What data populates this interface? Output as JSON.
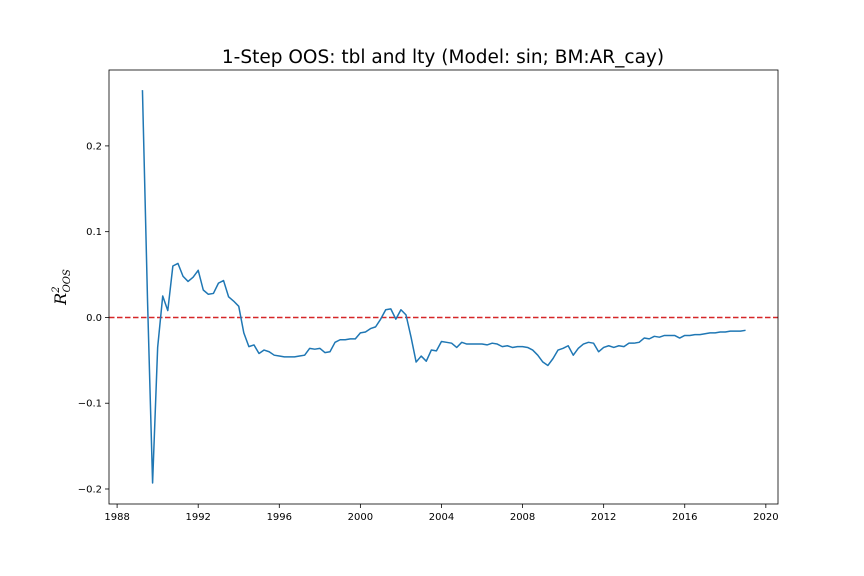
{
  "chart_data": {
    "type": "line",
    "title": "1-Step OOS: tbl and lty (Model: sin; BM:AR_cay)",
    "ylabel_main": "R",
    "ylabel_sup": "2",
    "ylabel_sub": "OOS",
    "xlabel": "",
    "xlim": [
      1987.6,
      2020.6
    ],
    "ylim": [
      -0.2175,
      0.2885
    ],
    "x_ticks": [
      1988,
      1992,
      1996,
      2000,
      2004,
      2008,
      2012,
      2016,
      2020
    ],
    "x_tick_labels": [
      "1988",
      "1992",
      "1996",
      "2000",
      "2004",
      "2008",
      "2012",
      "2016",
      "2020"
    ],
    "y_ticks": [
      -0.2,
      -0.1,
      0.0,
      0.1,
      0.2
    ],
    "y_tick_labels": [
      "−0.2",
      "−0.1",
      "0.0",
      "0.1",
      "0.2"
    ],
    "grid": false,
    "reference_line": {
      "y": 0.0,
      "style": "dashed",
      "color": "#d62728"
    },
    "series": [
      {
        "color": "#1f77b4",
        "x": [
          1989.25,
          1989.5,
          1989.75,
          1990.0,
          1990.25,
          1990.5,
          1990.75,
          1991.0,
          1991.25,
          1991.5,
          1991.75,
          1992.0,
          1992.25,
          1992.5,
          1992.75,
          1993.0,
          1993.25,
          1993.5,
          1993.75,
          1994.0,
          1994.25,
          1994.5,
          1994.75,
          1995.0,
          1995.25,
          1995.5,
          1995.75,
          1996.0,
          1996.25,
          1996.5,
          1996.75,
          1997.0,
          1997.25,
          1997.5,
          1997.75,
          1998.0,
          1998.25,
          1998.5,
          1998.75,
          1999.0,
          1999.25,
          1999.5,
          1999.75,
          2000.0,
          2000.25,
          2000.5,
          2000.75,
          2001.0,
          2001.25,
          2001.5,
          2001.75,
          2002.0,
          2002.25,
          2002.5,
          2002.75,
          2003.0,
          2003.25,
          2003.5,
          2003.75,
          2004.0,
          2004.25,
          2004.5,
          2004.75,
          2005.0,
          2005.25,
          2005.5,
          2005.75,
          2006.0,
          2006.25,
          2006.5,
          2006.75,
          2007.0,
          2007.25,
          2007.5,
          2007.75,
          2008.0,
          2008.25,
          2008.5,
          2008.75,
          2009.0,
          2009.25,
          2009.5,
          2009.75,
          2010.0,
          2010.25,
          2010.5,
          2010.75,
          2011.0,
          2011.25,
          2011.5,
          2011.75,
          2012.0,
          2012.25,
          2012.5,
          2012.75,
          2013.0,
          2013.25,
          2013.5,
          2013.75,
          2014.0,
          2014.25,
          2014.5,
          2014.75,
          2015.0,
          2015.25,
          2015.5,
          2015.75,
          2016.0,
          2016.25,
          2016.5,
          2016.75,
          2017.0,
          2017.25,
          2017.5,
          2017.75,
          2018.0,
          2018.25,
          2018.5,
          2018.75,
          2019.0
        ],
        "y": [
          0.265,
          0.02,
          -0.193,
          -0.035,
          0.025,
          0.008,
          0.06,
          0.063,
          0.048,
          0.042,
          0.047,
          0.055,
          0.032,
          0.027,
          0.028,
          0.04,
          0.043,
          0.024,
          0.019,
          0.013,
          -0.018,
          -0.034,
          -0.032,
          -0.042,
          -0.038,
          -0.04,
          -0.044,
          -0.045,
          -0.046,
          -0.046,
          -0.046,
          -0.045,
          -0.044,
          -0.036,
          -0.037,
          -0.036,
          -0.041,
          -0.04,
          -0.029,
          -0.026,
          -0.026,
          -0.025,
          -0.025,
          -0.018,
          -0.017,
          -0.013,
          -0.011,
          -0.002,
          0.009,
          0.01,
          -0.002,
          0.009,
          0.003,
          -0.023,
          -0.052,
          -0.045,
          -0.051,
          -0.038,
          -0.039,
          -0.028,
          -0.029,
          -0.03,
          -0.035,
          -0.029,
          -0.031,
          -0.031,
          -0.031,
          -0.031,
          -0.032,
          -0.03,
          -0.031,
          -0.034,
          -0.033,
          -0.035,
          -0.034,
          -0.034,
          -0.035,
          -0.038,
          -0.044,
          -0.052,
          -0.056,
          -0.048,
          -0.038,
          -0.036,
          -0.033,
          -0.044,
          -0.036,
          -0.031,
          -0.029,
          -0.03,
          -0.04,
          -0.035,
          -0.033,
          -0.035,
          -0.033,
          -0.034,
          -0.03,
          -0.03,
          -0.029,
          -0.024,
          -0.025,
          -0.022,
          -0.023,
          -0.021,
          -0.021,
          -0.021,
          -0.024,
          -0.021,
          -0.021,
          -0.02,
          -0.02,
          -0.019,
          -0.018,
          -0.018,
          -0.017,
          -0.017,
          -0.016,
          -0.016,
          -0.016,
          -0.015
        ]
      }
    ]
  }
}
